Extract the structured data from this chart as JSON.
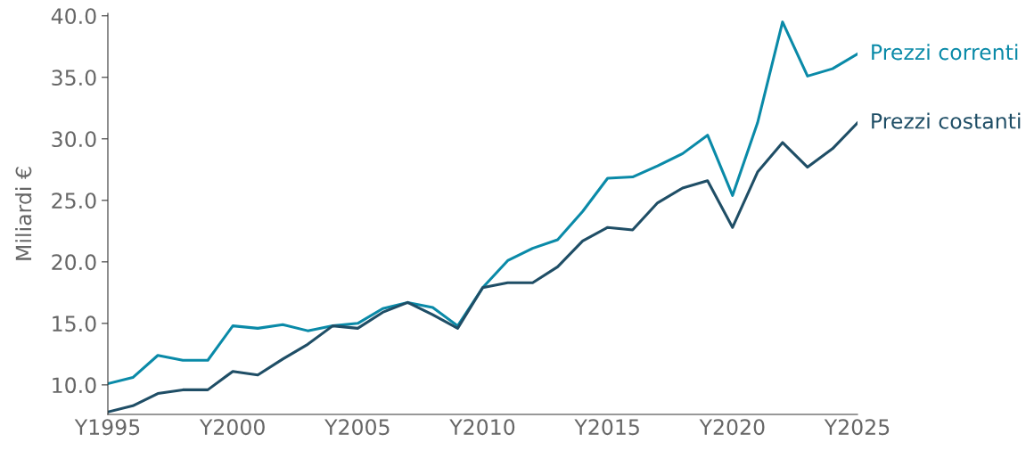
{
  "chart_data": {
    "type": "line",
    "ylabel": "Miliardi €",
    "categories": [
      "Y1995",
      null,
      null,
      null,
      null,
      "Y2000",
      null,
      null,
      null,
      null,
      "Y2005",
      null,
      null,
      null,
      null,
      "Y2010",
      null,
      null,
      null,
      null,
      "Y2015",
      null,
      null,
      null,
      null,
      "Y2020",
      null,
      null,
      null,
      null,
      "Y2025"
    ],
    "series": [
      {
        "name": "Prezzi correnti",
        "color": "#0a8aa8",
        "values": [
          10.1,
          10.6,
          12.4,
          12.0,
          12.0,
          14.8,
          14.6,
          14.9,
          14.4,
          14.8,
          15.0,
          16.2,
          16.7,
          16.3,
          14.8,
          17.9,
          20.1,
          21.1,
          21.8,
          24.1,
          26.8,
          26.9,
          27.8,
          28.8,
          30.3,
          25.4,
          31.3,
          39.5,
          35.1,
          35.7,
          36.9
        ]
      },
      {
        "name": "Prezzi costanti",
        "color": "#1f4e66",
        "values": [
          7.8,
          8.3,
          9.3,
          9.6,
          9.6,
          11.1,
          10.8,
          12.1,
          13.3,
          14.8,
          14.6,
          15.9,
          16.7,
          15.7,
          14.6,
          17.9,
          18.3,
          18.3,
          19.6,
          21.7,
          22.8,
          22.6,
          24.8,
          26.0,
          26.6,
          22.8,
          27.3,
          29.7,
          27.7,
          29.2,
          31.3
        ]
      }
    ],
    "ylim": [
      7.6,
      40.2
    ],
    "yticks": [
      {
        "value": 10,
        "label": "10.0"
      },
      {
        "value": 15,
        "label": "15.0"
      },
      {
        "value": 20,
        "label": "20.0"
      },
      {
        "value": 25,
        "label": "25.0"
      },
      {
        "value": 30,
        "label": "30.0"
      },
      {
        "value": 35,
        "label": "35.0"
      },
      {
        "value": 40,
        "label": "40.0"
      }
    ],
    "grid": false,
    "legend": false,
    "marker": "none",
    "line_style": "solid"
  }
}
